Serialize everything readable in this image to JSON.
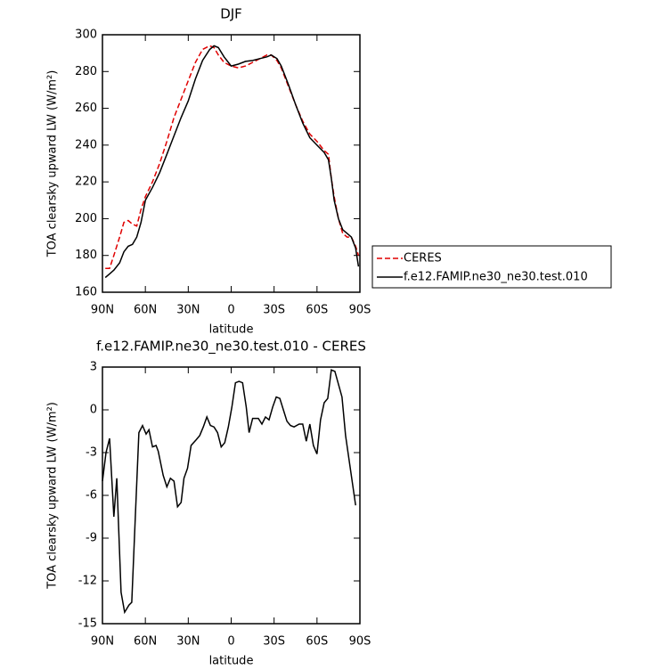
{
  "chart_data": [
    {
      "type": "line",
      "title": "DJF",
      "xlabel": "latitude",
      "ylabel": "TOA clearsky upward LW (W/m²)",
      "xlim": [
        90,
        -90
      ],
      "ylim": [
        160,
        300
      ],
      "xticks": [
        {
          "value": 90,
          "label": "90N"
        },
        {
          "value": 60,
          "label": "60N"
        },
        {
          "value": 30,
          "label": "30N"
        },
        0,
        {
          "value": -30,
          "label": "30S"
        },
        {
          "value": -60,
          "label": "60S"
        },
        {
          "value": -90,
          "label": "90S"
        }
      ],
      "yticks": [
        160,
        180,
        200,
        220,
        240,
        260,
        280,
        300
      ],
      "x": [
        88,
        85,
        82,
        78,
        75,
        72,
        69,
        66,
        63,
        60,
        55,
        50,
        45,
        40,
        35,
        30,
        25,
        20,
        15,
        12,
        9,
        5,
        0,
        -5,
        -10,
        -15,
        -20,
        -25,
        -28,
        -32,
        -35,
        -40,
        -45,
        -50,
        -55,
        -60,
        -65,
        -68,
        -70,
        -72,
        -75,
        -78,
        -81,
        -84,
        -87,
        -89
      ],
      "series": [
        {
          "name": "CERES",
          "color": "#e00000",
          "dashed": true,
          "values": [
            173,
            173,
            180,
            190,
            198,
            199,
            197,
            196,
            205,
            212,
            220,
            230,
            242,
            255,
            265,
            275,
            285,
            292,
            294,
            293,
            289,
            285,
            283,
            282,
            283,
            285,
            287,
            289,
            289,
            286,
            282,
            272,
            262,
            253,
            246,
            242,
            237,
            235,
            222,
            212,
            200,
            192,
            190,
            190,
            185,
            180
          ]
        },
        {
          "name": "f.e12.FAMIP.ne30_ne30.test.010",
          "color": "#000000",
          "dashed": false,
          "values": [
            168,
            170,
            172,
            176,
            182,
            185,
            186,
            190,
            198,
            210,
            217,
            225,
            235,
            245,
            255,
            264,
            276,
            286,
            292,
            294,
            293,
            288,
            283,
            284,
            285.5,
            286,
            287,
            288,
            289,
            287,
            283,
            273,
            262,
            252,
            244,
            240,
            236,
            232,
            222,
            210,
            200,
            194,
            192,
            190,
            184,
            174
          ]
        }
      ]
    },
    {
      "type": "line",
      "title": "f.e12.FAMIP.ne30_ne30.test.010 - CERES",
      "xlabel": "latitude",
      "ylabel": "TOA clearsky upward LW (W/m²)",
      "xlim": [
        90,
        -90
      ],
      "ylim": [
        -15,
        3
      ],
      "xticks": [
        {
          "value": 90,
          "label": "90N"
        },
        {
          "value": 60,
          "label": "60N"
        },
        {
          "value": 30,
          "label": "30N"
        },
        0,
        {
          "value": -30,
          "label": "30S"
        },
        {
          "value": -60,
          "label": "60S"
        },
        {
          "value": -90,
          "label": "90S"
        }
      ],
      "yticks": [
        -15,
        -12,
        -9,
        -6,
        -3,
        0,
        3
      ],
      "color": "#000000",
      "x": [
        90,
        87.5,
        85,
        82,
        80,
        77,
        74.5,
        71.5,
        69.5,
        67,
        64.5,
        62,
        59.5,
        57.5,
        55,
        52.5,
        51,
        47.5,
        45,
        42.5,
        40,
        37.5,
        35,
        33,
        30.5,
        28,
        24.5,
        22,
        19.5,
        17,
        14.5,
        12,
        9.5,
        7,
        4.5,
        2,
        -0.5,
        -3,
        -5.5,
        -8,
        -10.5,
        -12.5,
        -15,
        -19,
        -21.5,
        -24,
        -26.5,
        -29,
        -31.5,
        -34,
        -36.5,
        -39,
        -41.5,
        -44,
        -47.5,
        -50,
        -52.5,
        -55,
        -57.5,
        -60,
        -62.5,
        -65,
        -67.5,
        -70,
        -72.5,
        -75,
        -77.5,
        -80,
        -87
      ],
      "values": [
        -5,
        -3,
        -2,
        -7.5,
        -4.8,
        -12.8,
        -14.2,
        -13.7,
        -13.5,
        -7.5,
        -1.6,
        -1.1,
        -1.7,
        -1.4,
        -2.6,
        -2.5,
        -2.9,
        -4.6,
        -5.4,
        -4.8,
        -5,
        -6.8,
        -6.5,
        -4.8,
        -4.1,
        -2.5,
        -2.1,
        -1.8,
        -1.2,
        -0.5,
        -1.1,
        -1.2,
        -1.6,
        -2.6,
        -2.3,
        -1.2,
        0.2,
        1.9,
        2,
        1.9,
        0.2,
        -1.6,
        -0.6,
        -0.6,
        -1,
        -0.5,
        -0.7,
        0.2,
        0.9,
        0.8,
        0,
        -0.8,
        -1.1,
        -1.2,
        -1,
        -1,
        -2.2,
        -1,
        -2.5,
        -3.1,
        -0.7,
        0.5,
        0.8,
        2.8,
        2.7,
        1.8,
        0.9,
        -1.8,
        -6.7
      ]
    }
  ]
}
